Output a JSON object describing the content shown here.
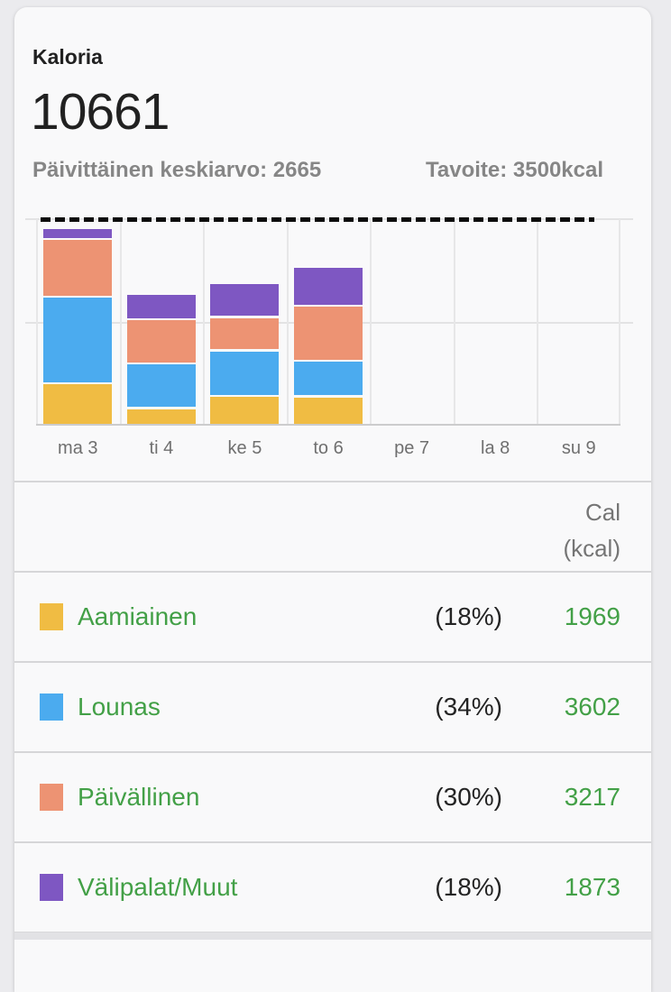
{
  "header": {
    "title": "Kaloria",
    "total": "10661",
    "average_label": "Päivittäinen keskiarvo: 2665",
    "target_label": "Tavoite: 3500kcal"
  },
  "chart_data": {
    "type": "bar",
    "stacked": true,
    "title": "Kaloria weekly stacked bars",
    "categories": [
      "ma 3",
      "ti 4",
      "ke 5",
      "to 6",
      "pe 7",
      "la 8",
      "su 9"
    ],
    "series": [
      {
        "name": "Aamiainen",
        "color": "#F0BC43",
        "values": [
          705,
          285,
          490,
          489,
          0,
          0,
          0
        ]
      },
      {
        "name": "Lounas",
        "color": "#4BABEF",
        "values": [
          1470,
          760,
          772,
          600,
          0,
          0,
          0
        ]
      },
      {
        "name": "Päivällinen",
        "color": "#ED9373",
        "values": [
          975,
          745,
          567,
          930,
          0,
          0,
          0
        ]
      },
      {
        "name": "Välipalat/Muut",
        "color": "#7E57C2",
        "values": [
          195,
          440,
          576,
          662,
          0,
          0,
          0
        ]
      }
    ],
    "target_line": 3500,
    "ylim": [
      0,
      3500
    ],
    "xlabel": "",
    "ylabel": "",
    "gridlines": "on",
    "legend_position": "table-below"
  },
  "table": {
    "header": {
      "line1": "Cal",
      "line2": "(kcal)"
    },
    "rows": [
      {
        "label": "Aamiainen",
        "percent": "(18%)",
        "value": "1969",
        "color": "#F0BC43"
      },
      {
        "label": "Lounas",
        "percent": "(34%)",
        "value": "3602",
        "color": "#4BABEF"
      },
      {
        "label": "Päivällinen",
        "percent": "(30%)",
        "value": "3217",
        "color": "#ED9373"
      },
      {
        "label": "Välipalat/Muut",
        "percent": "(18%)",
        "value": "1873",
        "color": "#7E57C2"
      }
    ]
  }
}
